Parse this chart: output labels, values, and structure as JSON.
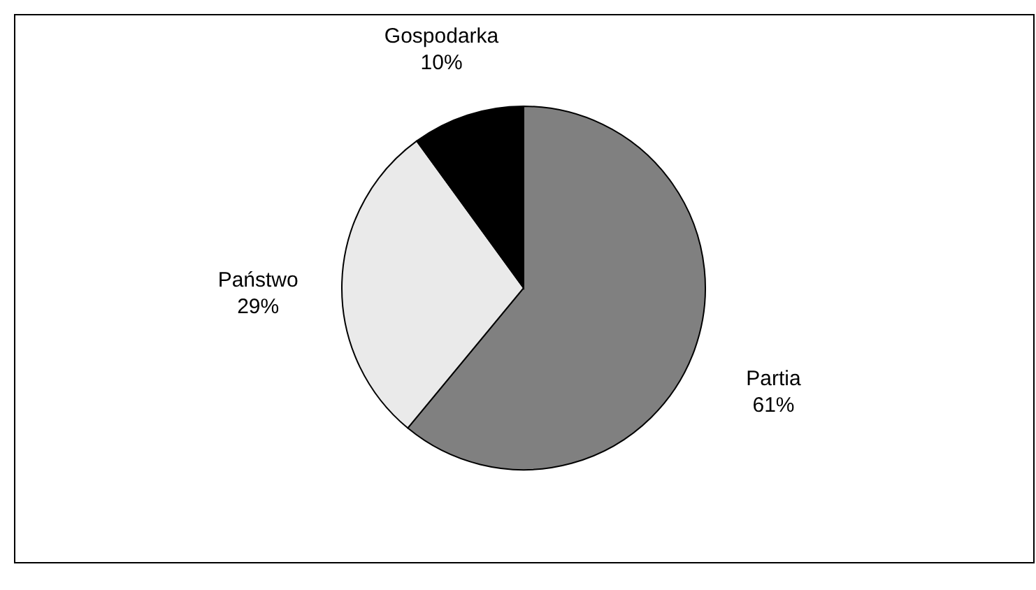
{
  "chart_data": {
    "type": "pie",
    "categories": [
      "Partia",
      "Państwo",
      "Gospodarka"
    ],
    "values": [
      61,
      29,
      10
    ],
    "value_labels": [
      "61%",
      "29%",
      "10%"
    ],
    "colors": [
      "#808080",
      "#eaeaea",
      "#000000"
    ],
    "legend": false
  }
}
